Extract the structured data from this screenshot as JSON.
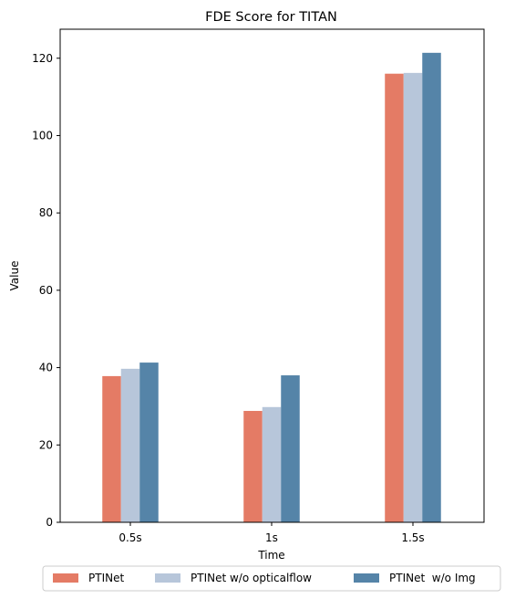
{
  "chart_data": {
    "type": "bar",
    "title": "FDE Score for TITAN",
    "xlabel": "Time",
    "ylabel": "Value",
    "categories": [
      "0.5s",
      "1s",
      "1.5s"
    ],
    "ylim": [
      0,
      127.5
    ],
    "yticks": [
      0,
      20,
      40,
      60,
      80,
      100,
      120
    ],
    "grid": false,
    "legend_position": "bottom-center",
    "series": [
      {
        "name": "PTINet",
        "color": "#E47B65",
        "values": [
          37.8,
          28.8,
          116.0
        ]
      },
      {
        "name": "PTINet w/o opticalflow",
        "color": "#B7C6DA",
        "values": [
          39.7,
          29.8,
          116.2
        ]
      },
      {
        "name": "PTINet  w/o Img",
        "color": "#5584A8",
        "values": [
          41.3,
          38.0,
          121.4
        ]
      }
    ]
  }
}
